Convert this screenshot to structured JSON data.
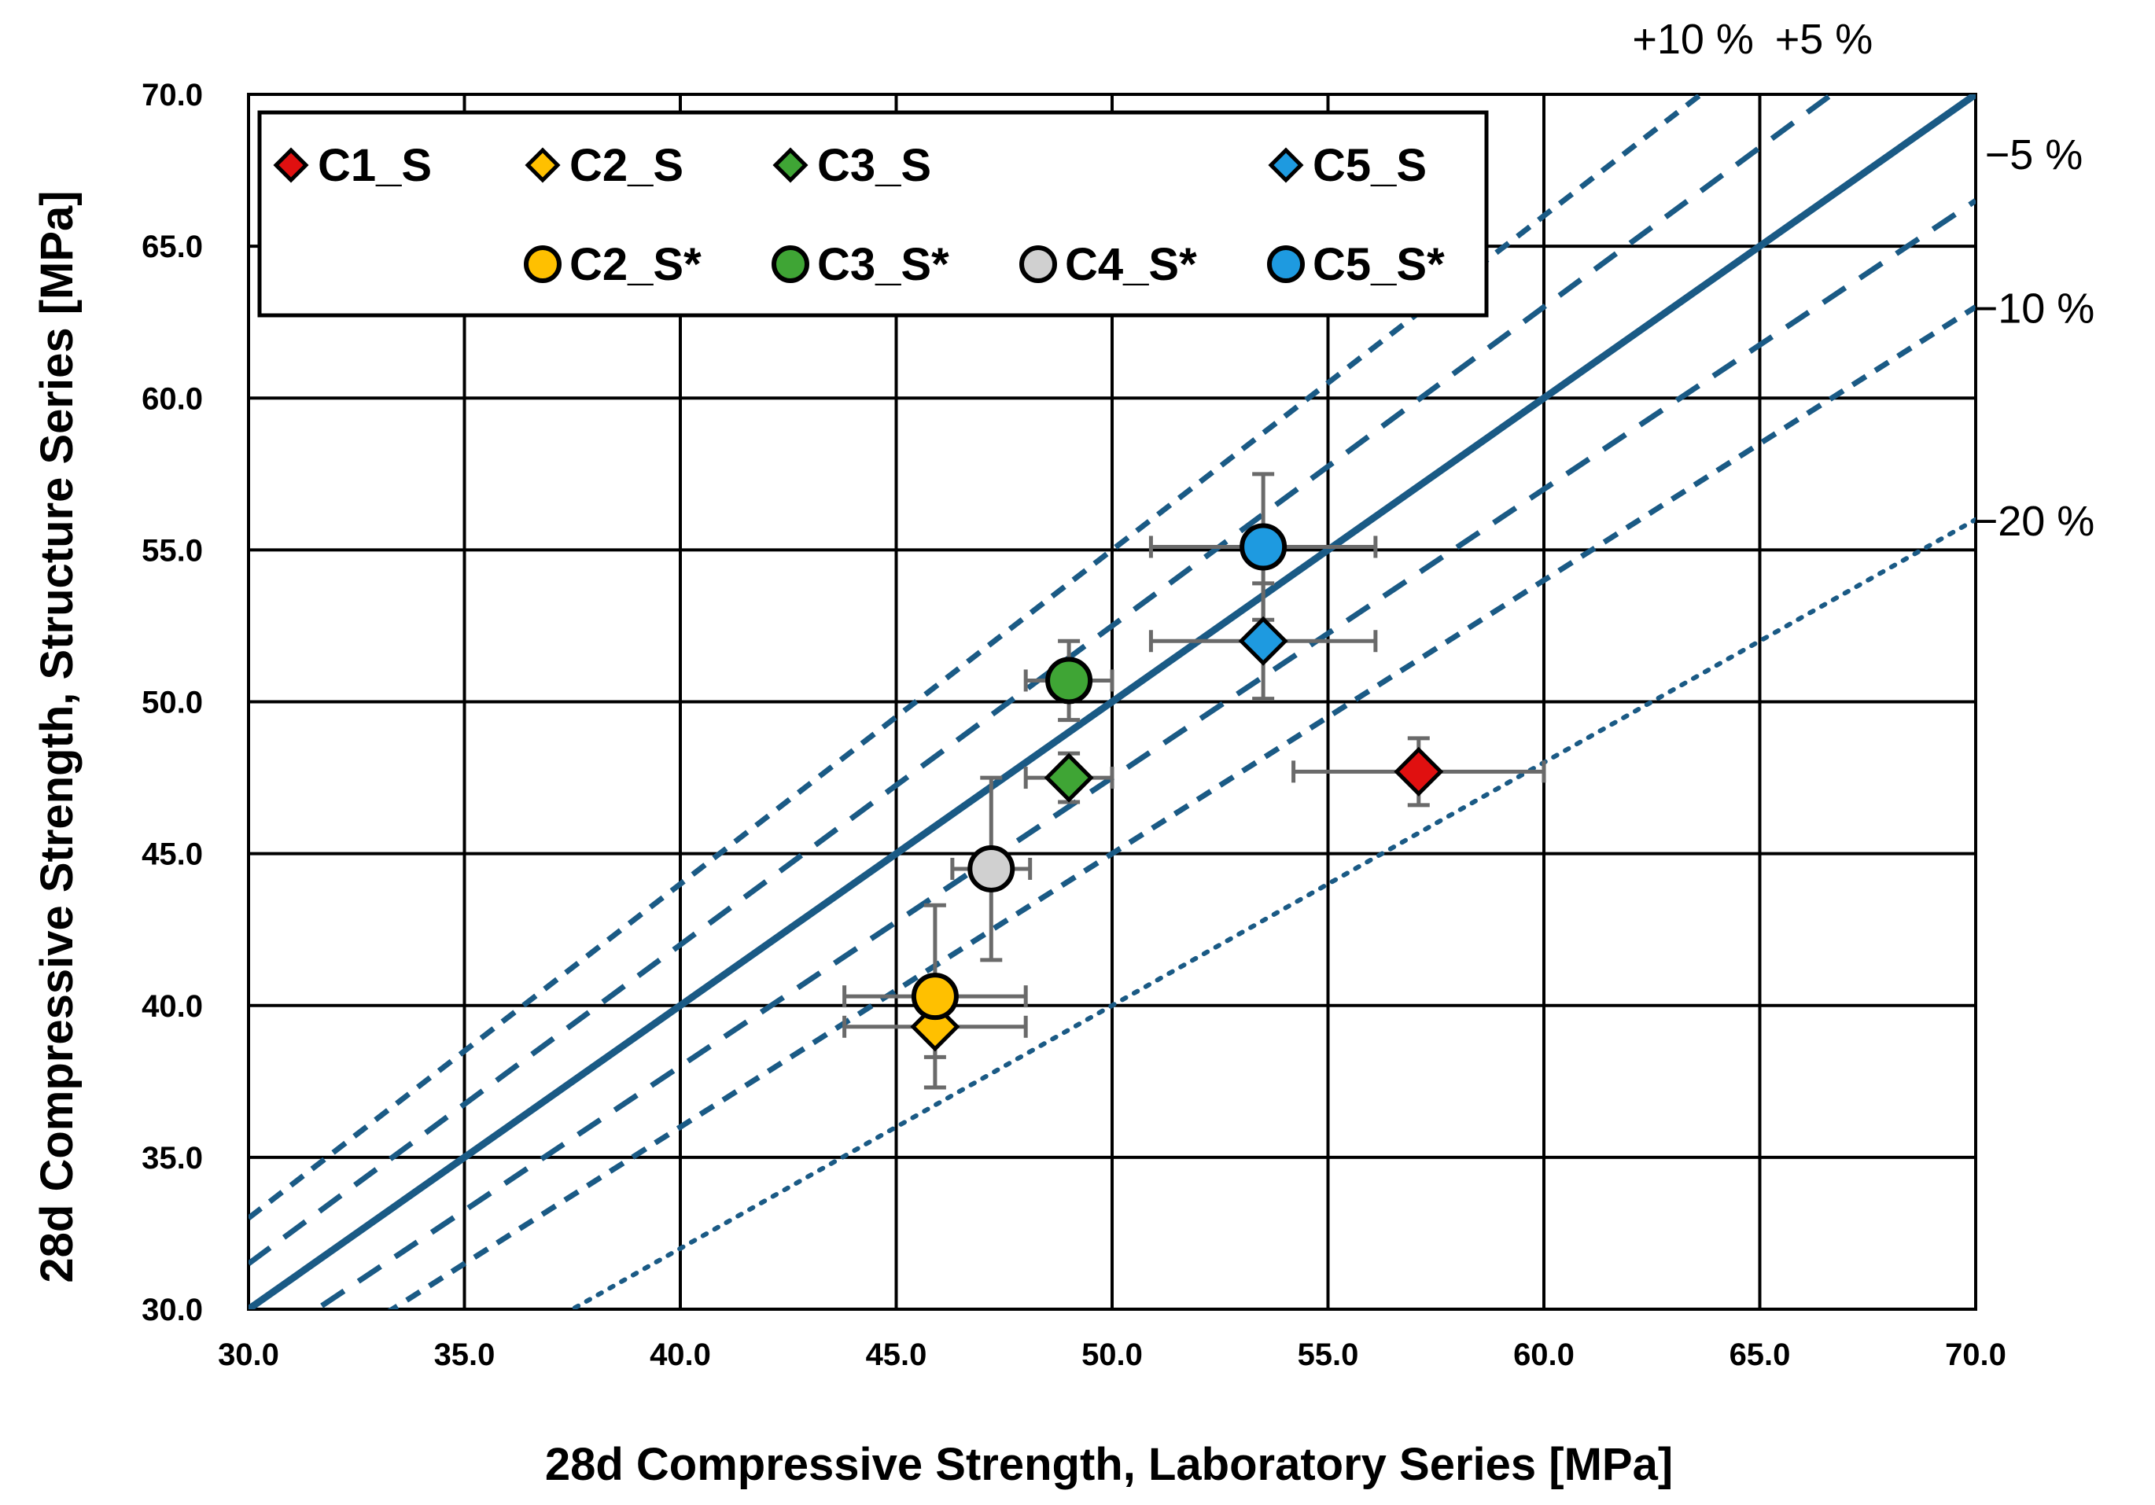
{
  "chart_data": {
    "type": "scatter",
    "xlabel": "28d Compressive Strength, Laboratory Series [MPa]",
    "ylabel": "28d Compressive Strength, Structure Series [MPa]",
    "xlim": [
      30,
      70
    ],
    "ylim": [
      30,
      70
    ],
    "xticks": [
      "30.0",
      "35.0",
      "40.0",
      "45.0",
      "50.0",
      "55.0",
      "60.0",
      "65.0",
      "70.0"
    ],
    "yticks": [
      "30.0",
      "35.0",
      "40.0",
      "45.0",
      "50.0",
      "55.0",
      "60.0",
      "65.0",
      "70.0"
    ],
    "grid": true,
    "legend_position": "top-left",
    "reference_lines": [
      {
        "label": "",
        "factor": 1.0,
        "style": "solid"
      },
      {
        "label": "+5 %",
        "factor": 1.05,
        "style": "long-dash"
      },
      {
        "label": "+10 %",
        "factor": 1.1,
        "style": "short-dash"
      },
      {
        "label": "−5 %",
        "factor": 0.95,
        "style": "long-dash"
      },
      {
        "label": "−10 %",
        "factor": 0.9,
        "style": "short-dash"
      },
      {
        "label": "−20 %",
        "factor": 0.8,
        "style": "dotted"
      }
    ],
    "line_color": "#1a5a85",
    "series": [
      {
        "name": "C1_S",
        "marker": "diamond",
        "color": "#e01010",
        "x": 57.1,
        "y": 47.7,
        "xerr": 2.9,
        "yerr": 1.1
      },
      {
        "name": "C2_S",
        "marker": "diamond",
        "color": "#ffc000",
        "x": 45.9,
        "y": 39.3,
        "xerr": 2.1,
        "yerr": 1.0
      },
      {
        "name": "C3_S",
        "marker": "diamond",
        "color": "#3fa535",
        "x": 49.0,
        "y": 47.5,
        "xerr": 1.0,
        "yerr": 0.8
      },
      {
        "name": "C5_S",
        "marker": "diamond",
        "color": "#1e9ae0",
        "x": 53.5,
        "y": 52.0,
        "xerr": 2.6,
        "yerr": 1.9
      },
      {
        "name": "C2_S*",
        "marker": "circle",
        "color": "#ffc000",
        "x": 45.9,
        "y": 40.3,
        "xerr": 2.1,
        "yerr": 3.0
      },
      {
        "name": "C3_S*",
        "marker": "circle",
        "color": "#3fa535",
        "x": 49.0,
        "y": 50.7,
        "xerr": 1.0,
        "yerr": 1.3
      },
      {
        "name": "C4_S*",
        "marker": "circle",
        "color": "#d0d0d0",
        "x": 47.2,
        "y": 44.5,
        "xerr": 0.9,
        "yerr": 3.0
      },
      {
        "name": "C5_S*",
        "marker": "circle",
        "color": "#1e9ae0",
        "x": 53.5,
        "y": 55.1,
        "xerr": 2.6,
        "yerr": 2.4
      }
    ]
  }
}
